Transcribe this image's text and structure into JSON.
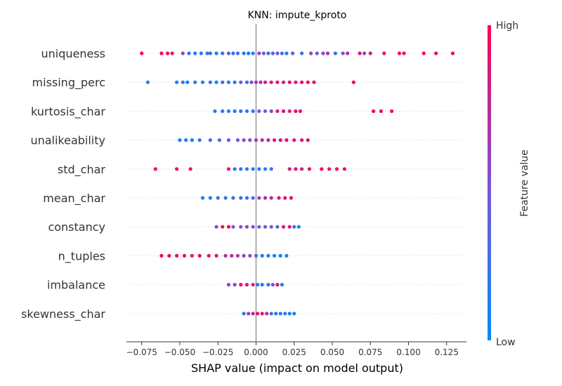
{
  "chart_data": {
    "type": "scatter",
    "title": "KNN: impute_kproto",
    "xlabel": "SHAP value (impact on model output)",
    "xlim": [
      -0.085,
      0.138
    ],
    "x_ticks": [
      -0.075,
      -0.05,
      -0.025,
      0.0,
      0.025,
      0.05,
      0.075,
      0.1,
      0.125
    ],
    "x_tick_labels": [
      "−0.075",
      "−0.050",
      "−0.025",
      "0.000",
      "0.025",
      "0.050",
      "0.075",
      "0.100",
      "0.125"
    ],
    "grid": false,
    "colorbar": {
      "label": "Feature value",
      "high_label": "High",
      "low_label": "Low",
      "low_color": "#008bfb",
      "high_color": "#ff0052"
    },
    "features": [
      {
        "name": "uniqueness",
        "points": [
          {
            "x": -0.075,
            "v": 1.0
          },
          {
            "x": -0.062,
            "v": 1.0
          },
          {
            "x": -0.058,
            "v": 0.95
          },
          {
            "x": -0.055,
            "v": 0.9
          },
          {
            "x": -0.048,
            "v": 0.55
          },
          {
            "x": -0.044,
            "v": 0.15
          },
          {
            "x": -0.04,
            "v": 0.1
          },
          {
            "x": -0.036,
            "v": 0.2
          },
          {
            "x": -0.032,
            "v": 0.1
          },
          {
            "x": -0.03,
            "v": 0.3
          },
          {
            "x": -0.026,
            "v": 0.05
          },
          {
            "x": -0.022,
            "v": 0.2
          },
          {
            "x": -0.018,
            "v": 0.4
          },
          {
            "x": -0.015,
            "v": 0.1
          },
          {
            "x": -0.012,
            "v": 0.3
          },
          {
            "x": -0.008,
            "v": 0.15
          },
          {
            "x": -0.005,
            "v": 0.05
          },
          {
            "x": -0.002,
            "v": 0.1
          },
          {
            "x": 0.002,
            "v": 0.6
          },
          {
            "x": 0.005,
            "v": 0.45
          },
          {
            "x": 0.008,
            "v": 0.2
          },
          {
            "x": 0.011,
            "v": 0.35
          },
          {
            "x": 0.014,
            "v": 0.5
          },
          {
            "x": 0.017,
            "v": 0.3
          },
          {
            "x": 0.02,
            "v": 0.15
          },
          {
            "x": 0.024,
            "v": 0.4
          },
          {
            "x": 0.03,
            "v": 0.25
          },
          {
            "x": 0.036,
            "v": 0.6
          },
          {
            "x": 0.04,
            "v": 0.45
          },
          {
            "x": 0.044,
            "v": 0.55
          },
          {
            "x": 0.047,
            "v": 0.65
          },
          {
            "x": 0.052,
            "v": 0.2
          },
          {
            "x": 0.057,
            "v": 0.5
          },
          {
            "x": 0.06,
            "v": 0.7
          },
          {
            "x": 0.068,
            "v": 0.85
          },
          {
            "x": 0.071,
            "v": 0.6
          },
          {
            "x": 0.075,
            "v": 0.8
          },
          {
            "x": 0.084,
            "v": 0.9
          },
          {
            "x": 0.094,
            "v": 0.95
          },
          {
            "x": 0.097,
            "v": 0.9
          },
          {
            "x": 0.11,
            "v": 1.0
          },
          {
            "x": 0.118,
            "v": 0.95
          },
          {
            "x": 0.129,
            "v": 1.0
          }
        ]
      },
      {
        "name": "missing_perc",
        "points": [
          {
            "x": -0.071,
            "v": 0.1
          },
          {
            "x": -0.052,
            "v": 0.1
          },
          {
            "x": -0.048,
            "v": 0.2
          },
          {
            "x": -0.045,
            "v": 0.05
          },
          {
            "x": -0.04,
            "v": 0.3
          },
          {
            "x": -0.035,
            "v": 0.1
          },
          {
            "x": -0.03,
            "v": 0.2
          },
          {
            "x": -0.026,
            "v": 0.05
          },
          {
            "x": -0.022,
            "v": 0.35
          },
          {
            "x": -0.018,
            "v": 0.15
          },
          {
            "x": -0.014,
            "v": 0.25
          },
          {
            "x": -0.01,
            "v": 0.4
          },
          {
            "x": -0.006,
            "v": 0.3
          },
          {
            "x": -0.003,
            "v": 0.55
          },
          {
            "x": 0.0,
            "v": 0.65
          },
          {
            "x": 0.003,
            "v": 0.75
          },
          {
            "x": 0.006,
            "v": 0.8
          },
          {
            "x": 0.01,
            "v": 0.85
          },
          {
            "x": 0.014,
            "v": 0.9
          },
          {
            "x": 0.018,
            "v": 0.8
          },
          {
            "x": 0.022,
            "v": 0.95
          },
          {
            "x": 0.026,
            "v": 0.85
          },
          {
            "x": 0.03,
            "v": 0.9
          },
          {
            "x": 0.034,
            "v": 1.0
          },
          {
            "x": 0.038,
            "v": 0.9
          },
          {
            "x": 0.064,
            "v": 1.0
          }
        ]
      },
      {
        "name": "kurtosis_char",
        "points": [
          {
            "x": -0.027,
            "v": 0.1
          },
          {
            "x": -0.022,
            "v": 0.2
          },
          {
            "x": -0.018,
            "v": 0.05
          },
          {
            "x": -0.014,
            "v": 0.15
          },
          {
            "x": -0.01,
            "v": 0.3
          },
          {
            "x": -0.006,
            "v": 0.1
          },
          {
            "x": -0.002,
            "v": 0.2
          },
          {
            "x": 0.002,
            "v": 0.45
          },
          {
            "x": 0.006,
            "v": 0.35
          },
          {
            "x": 0.01,
            "v": 0.55
          },
          {
            "x": 0.014,
            "v": 0.85
          },
          {
            "x": 0.018,
            "v": 0.9
          },
          {
            "x": 0.022,
            "v": 0.8
          },
          {
            "x": 0.026,
            "v": 0.95
          },
          {
            "x": 0.029,
            "v": 0.9
          },
          {
            "x": 0.077,
            "v": 1.0
          },
          {
            "x": 0.082,
            "v": 0.95
          },
          {
            "x": 0.089,
            "v": 1.0
          }
        ]
      },
      {
        "name": "unalikeability",
        "points": [
          {
            "x": -0.05,
            "v": 0.1
          },
          {
            "x": -0.046,
            "v": 0.2
          },
          {
            "x": -0.042,
            "v": 0.05
          },
          {
            "x": -0.037,
            "v": 0.15
          },
          {
            "x": -0.03,
            "v": 0.2
          },
          {
            "x": -0.024,
            "v": 0.3
          },
          {
            "x": -0.018,
            "v": 0.35
          },
          {
            "x": -0.012,
            "v": 0.4
          },
          {
            "x": -0.008,
            "v": 0.5
          },
          {
            "x": -0.004,
            "v": 0.55
          },
          {
            "x": 0.0,
            "v": 0.6
          },
          {
            "x": 0.004,
            "v": 0.7
          },
          {
            "x": 0.008,
            "v": 0.75
          },
          {
            "x": 0.012,
            "v": 0.8
          },
          {
            "x": 0.016,
            "v": 0.85
          },
          {
            "x": 0.02,
            "v": 0.9
          },
          {
            "x": 0.025,
            "v": 0.85
          },
          {
            "x": 0.03,
            "v": 0.9
          },
          {
            "x": 0.034,
            "v": 0.95
          }
        ]
      },
      {
        "name": "std_char",
        "points": [
          {
            "x": -0.066,
            "v": 1.0
          },
          {
            "x": -0.052,
            "v": 0.95
          },
          {
            "x": -0.043,
            "v": 1.0
          },
          {
            "x": -0.018,
            "v": 0.9
          },
          {
            "x": -0.014,
            "v": 0.2
          },
          {
            "x": -0.01,
            "v": 0.1
          },
          {
            "x": -0.006,
            "v": 0.3
          },
          {
            "x": -0.002,
            "v": 0.15
          },
          {
            "x": 0.002,
            "v": 0.2
          },
          {
            "x": 0.006,
            "v": 0.1
          },
          {
            "x": 0.01,
            "v": 0.25
          },
          {
            "x": 0.022,
            "v": 0.85
          },
          {
            "x": 0.026,
            "v": 0.9
          },
          {
            "x": 0.03,
            "v": 0.8
          },
          {
            "x": 0.035,
            "v": 0.95
          },
          {
            "x": 0.043,
            "v": 1.0
          },
          {
            "x": 0.048,
            "v": 0.9
          },
          {
            "x": 0.053,
            "v": 1.0
          },
          {
            "x": 0.058,
            "v": 0.95
          }
        ]
      },
      {
        "name": "mean_char",
        "points": [
          {
            "x": -0.035,
            "v": 0.05
          },
          {
            "x": -0.03,
            "v": 0.1
          },
          {
            "x": -0.025,
            "v": 0.2
          },
          {
            "x": -0.02,
            "v": 0.15
          },
          {
            "x": -0.015,
            "v": 0.3
          },
          {
            "x": -0.01,
            "v": 0.25
          },
          {
            "x": -0.006,
            "v": 0.2
          },
          {
            "x": -0.002,
            "v": 0.4
          },
          {
            "x": 0.002,
            "v": 0.65
          },
          {
            "x": 0.006,
            "v": 0.75
          },
          {
            "x": 0.01,
            "v": 0.8
          },
          {
            "x": 0.015,
            "v": 0.85
          },
          {
            "x": 0.019,
            "v": 0.9
          },
          {
            "x": 0.023,
            "v": 0.95
          }
        ]
      },
      {
        "name": "constancy",
        "points": [
          {
            "x": -0.026,
            "v": 0.6
          },
          {
            "x": -0.022,
            "v": 0.9
          },
          {
            "x": -0.018,
            "v": 1.0
          },
          {
            "x": -0.015,
            "v": 0.5
          },
          {
            "x": -0.01,
            "v": 0.55
          },
          {
            "x": -0.006,
            "v": 0.6
          },
          {
            "x": -0.002,
            "v": 0.5
          },
          {
            "x": 0.002,
            "v": 0.45
          },
          {
            "x": 0.006,
            "v": 0.4
          },
          {
            "x": 0.01,
            "v": 0.5
          },
          {
            "x": 0.014,
            "v": 0.35
          },
          {
            "x": 0.018,
            "v": 0.85
          },
          {
            "x": 0.022,
            "v": 0.9
          },
          {
            "x": 0.025,
            "v": 0.2
          },
          {
            "x": 0.028,
            "v": 0.1
          }
        ]
      },
      {
        "name": "n_tuples",
        "points": [
          {
            "x": -0.062,
            "v": 1.0
          },
          {
            "x": -0.057,
            "v": 0.95
          },
          {
            "x": -0.052,
            "v": 1.0
          },
          {
            "x": -0.047,
            "v": 0.95
          },
          {
            "x": -0.042,
            "v": 0.9
          },
          {
            "x": -0.037,
            "v": 0.95
          },
          {
            "x": -0.031,
            "v": 0.9
          },
          {
            "x": -0.026,
            "v": 0.85
          },
          {
            "x": -0.02,
            "v": 0.75
          },
          {
            "x": -0.016,
            "v": 0.7
          },
          {
            "x": -0.012,
            "v": 0.65
          },
          {
            "x": -0.008,
            "v": 0.6
          },
          {
            "x": -0.004,
            "v": 0.55
          },
          {
            "x": 0.0,
            "v": 0.3
          },
          {
            "x": 0.004,
            "v": 0.15
          },
          {
            "x": 0.008,
            "v": 0.1
          },
          {
            "x": 0.012,
            "v": 0.05
          },
          {
            "x": 0.016,
            "v": 0.1
          },
          {
            "x": 0.02,
            "v": 0.05
          }
        ]
      },
      {
        "name": "imbalance",
        "points": [
          {
            "x": -0.018,
            "v": 0.6
          },
          {
            "x": -0.014,
            "v": 0.55
          },
          {
            "x": -0.01,
            "v": 0.95
          },
          {
            "x": -0.006,
            "v": 0.9
          },
          {
            "x": -0.002,
            "v": 0.85
          },
          {
            "x": 0.001,
            "v": 0.2
          },
          {
            "x": 0.004,
            "v": 0.1
          },
          {
            "x": 0.008,
            "v": 0.15
          },
          {
            "x": 0.011,
            "v": 0.5
          },
          {
            "x": 0.014,
            "v": 0.9
          },
          {
            "x": 0.017,
            "v": 0.1
          }
        ]
      },
      {
        "name": "skewness_char",
        "points": [
          {
            "x": -0.008,
            "v": 0.2
          },
          {
            "x": -0.005,
            "v": 0.6
          },
          {
            "x": -0.002,
            "v": 0.8
          },
          {
            "x": 0.001,
            "v": 0.85
          },
          {
            "x": 0.004,
            "v": 0.9
          },
          {
            "x": 0.007,
            "v": 0.7
          },
          {
            "x": 0.01,
            "v": 0.3
          },
          {
            "x": 0.013,
            "v": 0.15
          },
          {
            "x": 0.016,
            "v": 0.1
          },
          {
            "x": 0.019,
            "v": 0.2
          },
          {
            "x": 0.022,
            "v": 0.1
          },
          {
            "x": 0.025,
            "v": 0.05
          }
        ]
      }
    ]
  }
}
